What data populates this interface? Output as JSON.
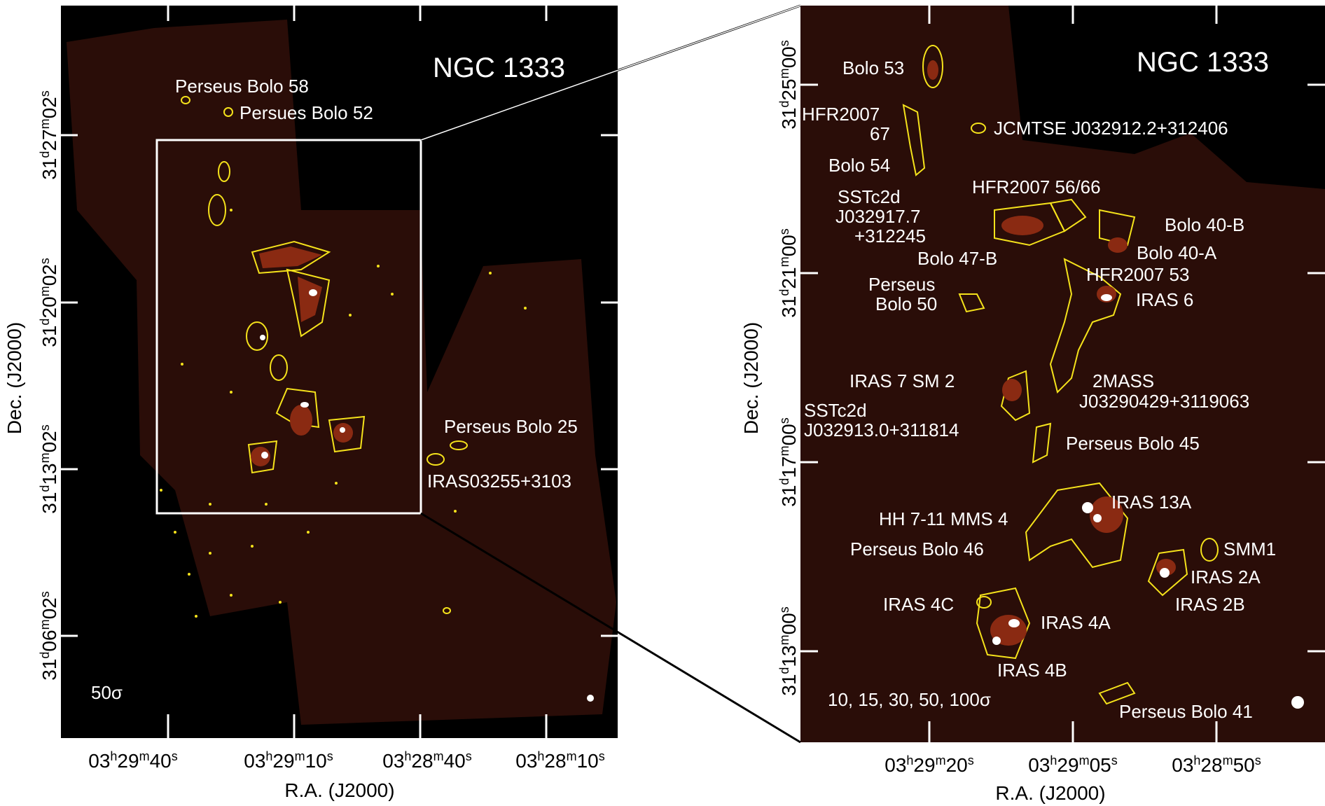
{
  "left_panel": {
    "title": "NGC 1333",
    "scale_label": "50σ",
    "sources": [
      "Perseus Bolo 58",
      "Persues Bolo 52",
      "Perseus Bolo 25",
      "IRAS03255+3103"
    ],
    "dec_ticks": [
      {
        "deg": "31",
        "d": "d",
        "min": "27",
        "m": "m",
        "sec": "02",
        "s": "s"
      },
      {
        "deg": "31",
        "d": "d",
        "min": "20",
        "m": "m",
        "sec": "02",
        "s": "s"
      },
      {
        "deg": "31",
        "d": "d",
        "min": "13",
        "m": "m",
        "sec": "02",
        "s": "s"
      },
      {
        "deg": "31",
        "d": "d",
        "min": "06",
        "m": "m",
        "sec": "02",
        "s": "s"
      }
    ],
    "ra_ticks": [
      {
        "h": "03",
        "hu": "h",
        "m": "29",
        "mu": "m",
        "s": "40",
        "su": "s"
      },
      {
        "h": "03",
        "hu": "h",
        "m": "29",
        "mu": "m",
        "s": "10",
        "su": "s"
      },
      {
        "h": "03",
        "hu": "h",
        "m": "28",
        "mu": "m",
        "s": "40",
        "su": "s"
      },
      {
        "h": "03",
        "hu": "h",
        "m": "28",
        "mu": "m",
        "s": "10",
        "su": "s"
      }
    ],
    "xlabel": "R.A. (J2000)",
    "ylabel": "Dec. (J2000)"
  },
  "right_panel": {
    "title": "NGC 1333",
    "contour_levels": "10, 15, 30, 50, 100σ",
    "sources": [
      "Bolo 53",
      "HFR2007",
      "67",
      "JCMTSE J032912.2+312406",
      "Bolo 54",
      "SSTc2d",
      "J032917.7",
      "+312245",
      "HFR2007 56/66",
      "Bolo 40-B",
      "Bolo 47-B",
      "Bolo 40-A",
      "HFR2007 53",
      "Perseus",
      "Bolo 50",
      "IRAS 6",
      "IRAS 7 SM 2",
      "2MASS",
      "J03290429+3119063",
      "SSTc2d",
      "J032913.0+311814",
      "Perseus Bolo 45",
      "IRAS 13A",
      "HH 7-11 MMS 4",
      "Perseus Bolo 46",
      "SMM1",
      "IRAS 2A",
      "IRAS 2B",
      "IRAS 4C",
      "IRAS 4A",
      "IRAS 4B",
      "Perseus Bolo 41"
    ],
    "dec_ticks": [
      {
        "deg": "31",
        "d": "d",
        "min": "25",
        "m": "m",
        "sec": "00",
        "s": "s"
      },
      {
        "deg": "31",
        "d": "d",
        "min": "21",
        "m": "m",
        "sec": "00",
        "s": "s"
      },
      {
        "deg": "31",
        "d": "d",
        "min": "17",
        "m": "m",
        "sec": "00",
        "s": "s"
      },
      {
        "deg": "31",
        "d": "d",
        "min": "13",
        "m": "m",
        "sec": "00",
        "s": "s"
      }
    ],
    "ra_ticks": [
      {
        "h": "03",
        "hu": "h",
        "m": "29",
        "mu": "m",
        "s": "20",
        "su": "s"
      },
      {
        "h": "03",
        "hu": "h",
        "m": "29",
        "mu": "m",
        "s": "05",
        "su": "s"
      },
      {
        "h": "03",
        "hu": "h",
        "m": "28",
        "mu": "m",
        "s": "50",
        "su": "s"
      }
    ],
    "xlabel": "R.A. (J2000)",
    "ylabel": "Dec. (J2000)"
  },
  "colors": {
    "background": "#000000",
    "map": "#2a0d08",
    "contour": "#f5e21b",
    "core": "#8a2a12",
    "peak": "#ffffff"
  }
}
